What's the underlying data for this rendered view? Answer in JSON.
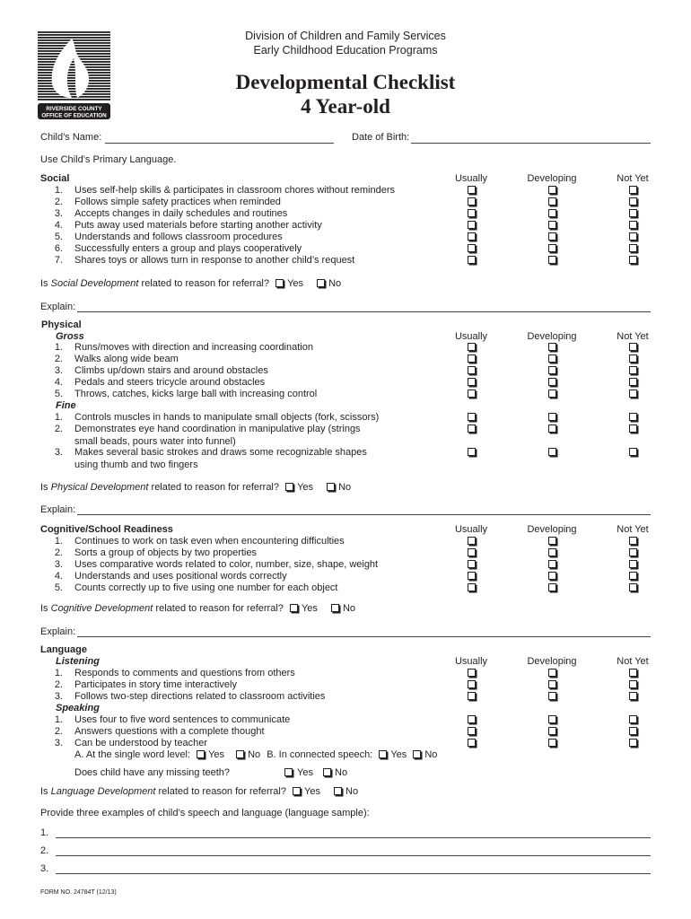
{
  "logo": {
    "line1": "RIVERSIDE COUNTY",
    "line2": "OFFICE OF EDUCATION"
  },
  "header": {
    "line1": "Division of Children and Family Services",
    "line2": "Early Childhood Education Programs",
    "title": "Developmental Checklist",
    "subtitle": "4 Year-old"
  },
  "fields": {
    "child_name": "Child’s Name:",
    "dob": "Date of Birth:"
  },
  "instruction": "Use Child’s Primary Language.",
  "columns": [
    "Usually",
    "Developing",
    "Not Yet"
  ],
  "yes": "Yes",
  "no": "No",
  "explain": "Explain:",
  "referral_pre": "Is",
  "referral_post": "related to reason for referral?",
  "social": {
    "title": "Social",
    "items": [
      "Uses self-help skills & participates in classroom chores without reminders",
      "Follows simple safety practices when reminded",
      "Accepts changes in daily schedules and routines",
      "Puts away used materials before starting another activity",
      "Understands and follows classroom procedures",
      "Successfully enters a group and plays cooperatively",
      "Shares toys or allows turn in response to another child’s request"
    ],
    "referral_topic": "Social Development"
  },
  "physical": {
    "title": "Physical",
    "gross_title": "Gross",
    "gross": [
      "Runs/moves with direction and increasing coordination",
      "Walks along wide beam",
      "Climbs up/down stairs and around obstacles",
      "Pedals and steers tricycle around obstacles",
      "Throws, catches, kicks large ball with increasing control"
    ],
    "fine_title": "Fine",
    "fine": [
      "Controls muscles in hands to manipulate small objects (fork, scissors)",
      "Demonstrates eye hand coordination in manipulative play (strings small beads, pours water into funnel)",
      "Makes several basic strokes and draws some recognizable shapes using thumb and two fingers"
    ],
    "referral_topic": "Physical Development"
  },
  "cognitive": {
    "title": "Cognitive/School Readiness",
    "items": [
      "Continues to work on task even when encountering difficulties",
      "Sorts a group of objects by two properties",
      "Uses comparative words related to color, number, size, shape, weight",
      "Understands and uses positional words correctly",
      "Counts correctly up to five using one number for each object"
    ],
    "referral_topic": "Cognitive Development"
  },
  "language": {
    "title": "Language",
    "listening_title": "Listening",
    "listening": [
      "Responds to comments and questions from others",
      "Participates in story time interactively",
      "Follows two-step directions related to classroom activities"
    ],
    "speaking_title": "Speaking",
    "speaking": [
      "Uses four to five word sentences to communicate",
      "Answers questions with a complete thought",
      "Can be understood by teacher"
    ],
    "single_word": "A. At the single word level:",
    "connected": "B. In connected speech:",
    "teeth": "Does child have any missing teeth?",
    "referral_topic": "Language Development",
    "sample_prompt": "Provide three examples of child’s speech and language (language sample):",
    "sample_numbers": [
      "1.",
      "2.",
      "3."
    ]
  },
  "footer": "FORM NO. 24784T   (12/13)"
}
